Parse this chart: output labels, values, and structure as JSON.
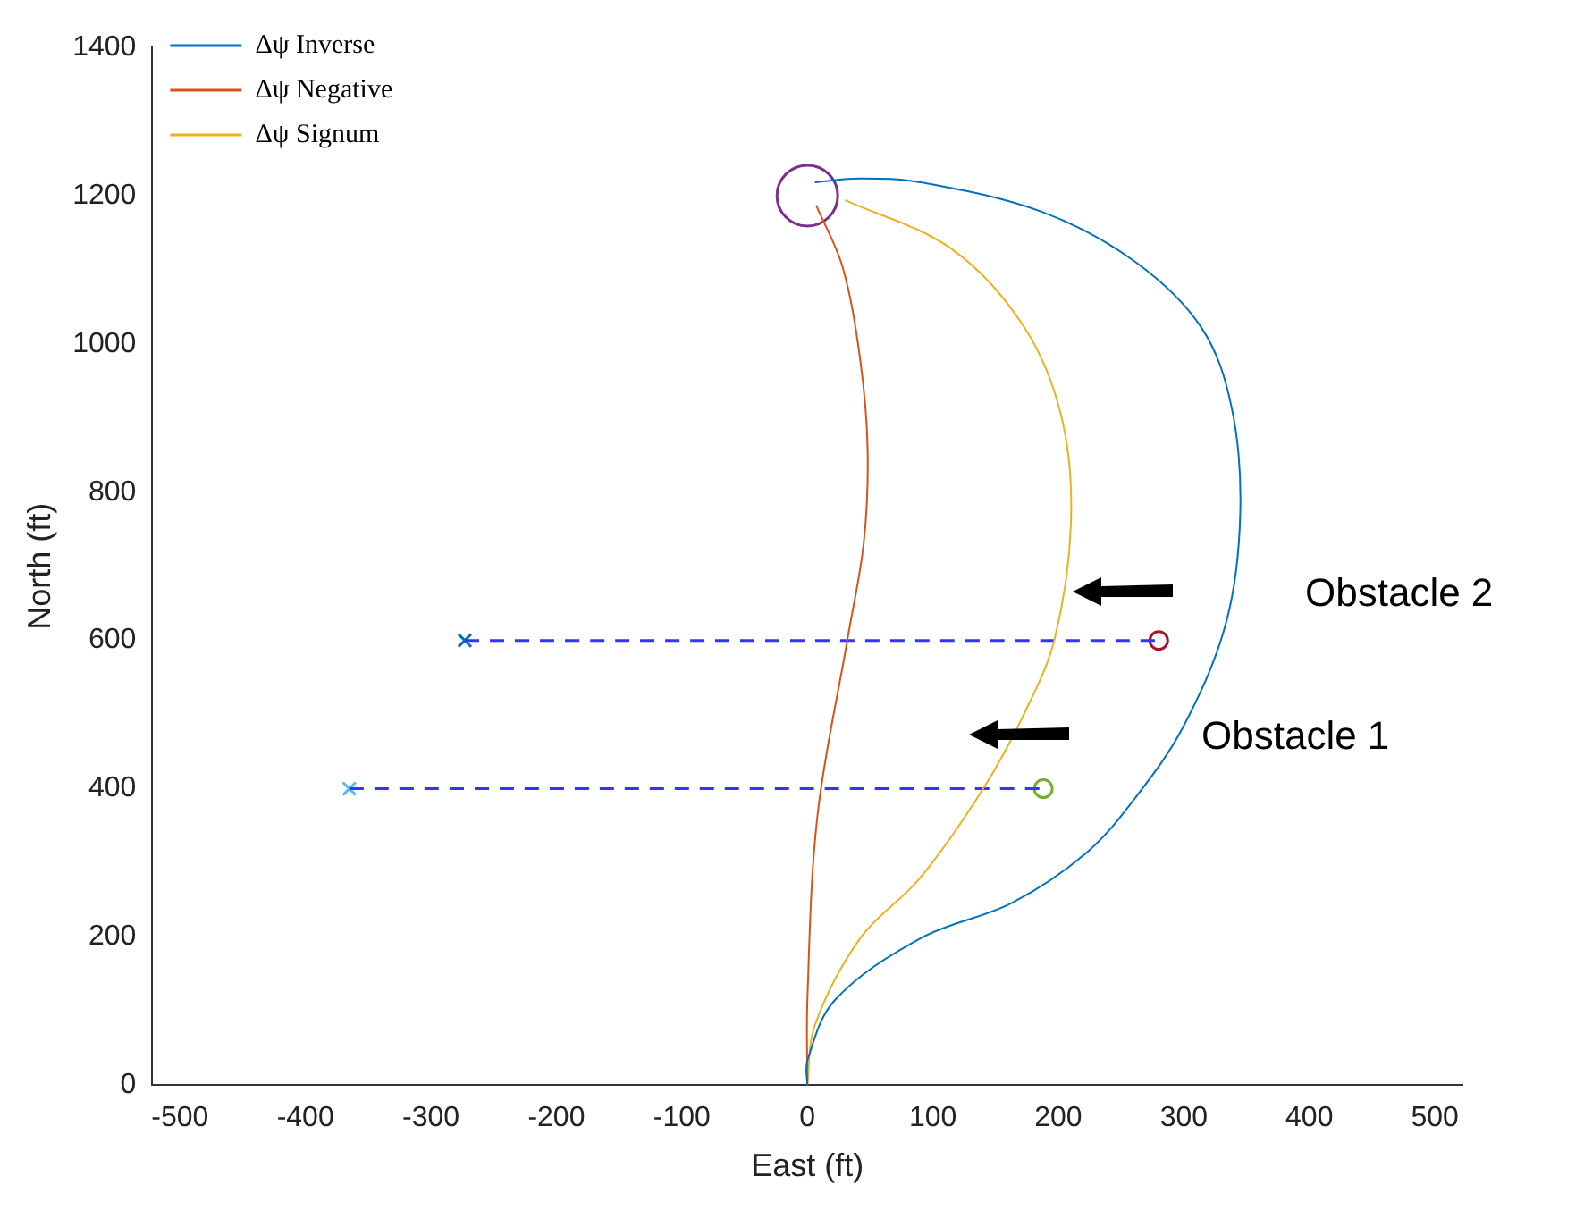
{
  "chart_data": {
    "type": "line",
    "xlabel": "East (ft)",
    "ylabel": "North (ft)",
    "xlim": [
      -522,
      522
    ],
    "xticks": [
      -500,
      -400,
      -300,
      -200,
      -100,
      0,
      100,
      200,
      300,
      400,
      500
    ],
    "ylim": [
      0,
      1400
    ],
    "yticks": [
      0,
      200,
      400,
      600,
      800,
      1000,
      1200,
      1400
    ],
    "legend": "top left",
    "marker": "none",
    "line_style": "solid",
    "series": [
      {
        "name": "Δψ Inverse",
        "color": "#0072bd",
        "x": [
          0,
          0,
          22,
          90,
          163,
          222,
          261,
          300,
          334,
          345,
          338,
          314,
          261,
          187,
          90,
          42,
          6
        ],
        "values": [
          0,
          33,
          115,
          198,
          246,
          313,
          387,
          485,
          626,
          774,
          915,
          1022,
          1111,
          1178,
          1218,
          1223,
          1218
        ]
      },
      {
        "name": "Δψ Negative",
        "color": "#d95319",
        "x": [
          0,
          0,
          8,
          32,
          45,
          48,
          42,
          28,
          7
        ],
        "values": [
          0,
          115,
          363,
          602,
          733,
          858,
          980,
          1104,
          1187
        ]
      },
      {
        "name": "Δψ Signum",
        "color": "#edb120",
        "x": [
          0,
          6,
          42,
          90,
          139,
          173,
          197,
          210,
          203,
          173,
          115,
          30
        ],
        "values": [
          0,
          81,
          198,
          280,
          397,
          502,
          602,
          757,
          898,
          1022,
          1128,
          1194
        ]
      },
      {
        "type": "line",
        "line_style": "dashed",
        "color": "#3333ff",
        "x": [
          -273,
          280
        ],
        "values": [
          600,
          600
        ]
      },
      {
        "type": "line",
        "line_style": "dashed",
        "color": "#3333ff",
        "x": [
          -365,
          188
        ],
        "values": [
          400,
          400
        ]
      },
      {
        "type": "bubble",
        "marker": "circle",
        "color": "#7e2f8e",
        "x": [
          0
        ],
        "values": [
          1200
        ],
        "sizes": [
          1
        ]
      },
      {
        "type": "scatter",
        "marker": "circle",
        "color": "#a2142f",
        "x": [
          280
        ],
        "values": [
          600
        ]
      },
      {
        "type": "scatter",
        "marker": "circle",
        "color": "#77ac30",
        "x": [
          188
        ],
        "values": [
          400
        ]
      },
      {
        "type": "scatter",
        "marker": "cross",
        "color": "#0072bd",
        "x": [
          -273
        ],
        "values": [
          600
        ]
      },
      {
        "type": "scatter",
        "marker": "cross",
        "color": "#4dbeee",
        "x": [
          -365
        ],
        "values": [
          400
        ]
      }
    ],
    "annotations": [
      "Obstacle 2",
      "Obstacle 1"
    ]
  }
}
